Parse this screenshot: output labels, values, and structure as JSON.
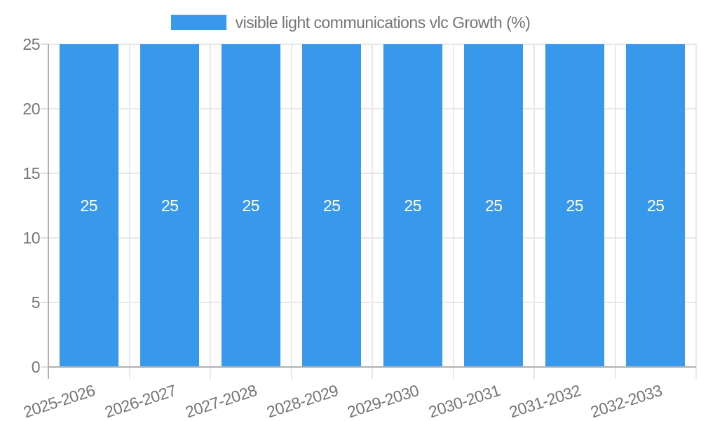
{
  "chart_data": {
    "type": "bar",
    "title": "",
    "categories": [
      "2025-2026",
      "2026-2027",
      "2027-2028",
      "2028-2029",
      "2029-2030",
      "2030-2031",
      "2031-2032",
      "2032-2033"
    ],
    "series": [
      {
        "name": "visible light communications vlc Growth (%)",
        "color": "#3899ec",
        "values": [
          25,
          25,
          25,
          25,
          25,
          25,
          25,
          25
        ]
      }
    ],
    "bar_value_labels_shown": true,
    "xlabel": "",
    "ylabel": "",
    "ylim": [
      0,
      25
    ],
    "yticks": [
      0,
      5,
      10,
      15,
      20,
      25
    ],
    "grid": true,
    "legend_position": "top",
    "x_tick_rotation_deg": -18,
    "style": {
      "bar_color": "#3899ec",
      "bar_label_color": "#ffffff",
      "axis_text_color": "#757575",
      "grid_color": "#e8e8e8",
      "axis_line_color": "#b0b0b0",
      "tick_color": "#dedede",
      "background": "#ffffff"
    }
  }
}
